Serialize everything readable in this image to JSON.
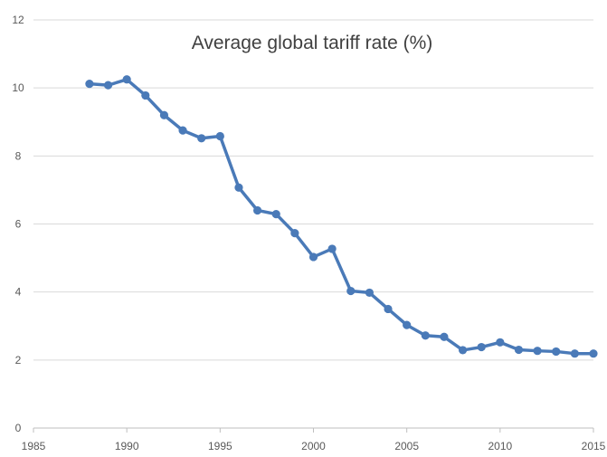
{
  "chart_data": {
    "type": "line",
    "title": "Average global tariff rate (%)",
    "xlabel": "",
    "ylabel": "",
    "xlim": [
      1985,
      2015
    ],
    "ylim": [
      0,
      12
    ],
    "x_ticks": [
      1985,
      1990,
      1995,
      2000,
      2005,
      2010,
      2015
    ],
    "y_ticks": [
      0,
      2,
      4,
      6,
      8,
      10,
      12
    ],
    "grid": "horizontal",
    "legend": "none",
    "colors": {
      "series": "#4a7ab8",
      "grid": "#d9d9d9",
      "axis": "#bfbfbf",
      "text": "#595959"
    },
    "series": [
      {
        "x": [
          1988,
          1989,
          1990,
          1991,
          1992,
          1993,
          1994,
          1995,
          1996,
          1997,
          1998,
          1999,
          2000,
          2001,
          2002,
          2003,
          2004,
          2005,
          2006,
          2007,
          2008,
          2009,
          2010,
          2011,
          2012,
          2013,
          2014,
          2015
        ],
        "values": [
          10.12,
          10.08,
          10.25,
          9.78,
          9.2,
          8.75,
          8.52,
          8.58,
          7.07,
          6.4,
          6.29,
          5.73,
          5.03,
          5.27,
          4.03,
          3.98,
          3.5,
          3.03,
          2.72,
          2.68,
          2.29,
          2.38,
          2.52,
          2.3,
          2.27,
          2.25,
          2.19,
          2.19
        ]
      }
    ]
  }
}
